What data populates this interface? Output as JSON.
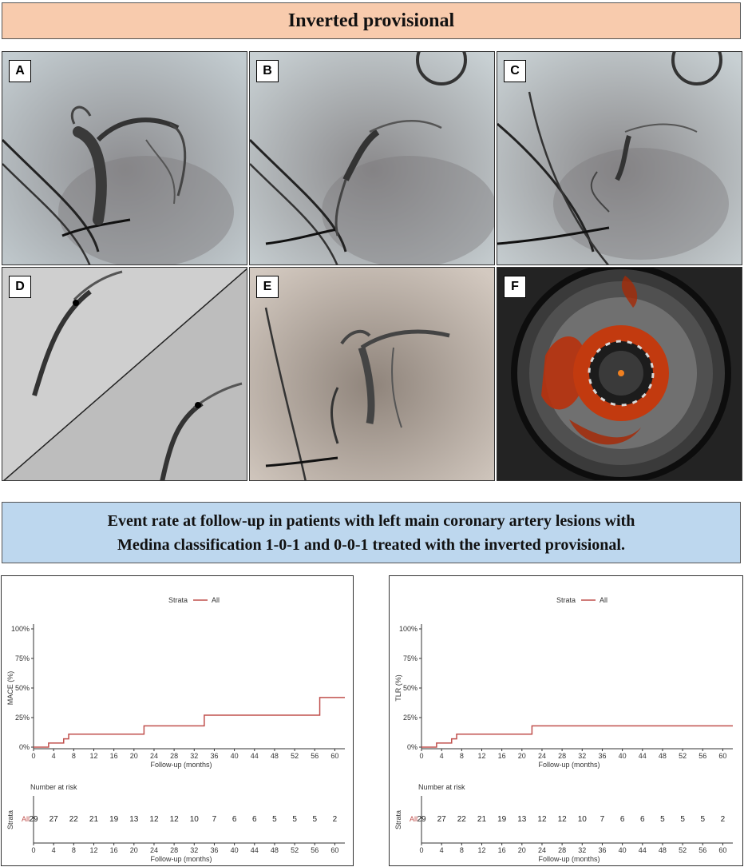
{
  "header": {
    "title": "Inverted provisional"
  },
  "images": [
    {
      "label": "A"
    },
    {
      "label": "B"
    },
    {
      "label": "C"
    },
    {
      "label": "D"
    },
    {
      "label": "E"
    },
    {
      "label": "F"
    }
  ],
  "subtitle": {
    "line1": "Event rate at follow-up in patients with left main coronary artery lesions with",
    "line2": "Medina classification 1-0-1 and 0-0-1 treated with the inverted provisional."
  },
  "colors": {
    "title_bg": "#f8cbad",
    "subtitle_bg": "#bdd7ee",
    "curve": "#c0504d"
  },
  "chart_data": [
    {
      "type": "line",
      "step": true,
      "legend": {
        "title": "Strata",
        "entries": [
          "All"
        ],
        "position": "top"
      },
      "xlabel": "Follow-up (months)",
      "ylabel": "MACE (%)",
      "xticks": [
        0,
        4,
        8,
        12,
        16,
        20,
        24,
        28,
        32,
        36,
        40,
        44,
        48,
        52,
        56,
        60
      ],
      "yticks": [
        "0%",
        "25%",
        "50%",
        "75%",
        "100%"
      ],
      "xlim": [
        0,
        62
      ],
      "ylim": [
        0,
        100
      ],
      "grid": false,
      "series": [
        {
          "name": "All",
          "x": [
            0,
            3,
            6,
            7,
            22,
            34,
            57,
            62
          ],
          "y": [
            0,
            3.5,
            7,
            11,
            18,
            27,
            42,
            42
          ]
        }
      ],
      "risk_table": {
        "title": "Number at risk",
        "row_title": "Strata",
        "row_label": "All",
        "times": [
          0,
          4,
          8,
          12,
          16,
          20,
          24,
          28,
          32,
          36,
          40,
          44,
          48,
          52,
          56,
          60
        ],
        "values": [
          29,
          27,
          22,
          21,
          19,
          13,
          12,
          12,
          10,
          7,
          6,
          6,
          5,
          5,
          5,
          2
        ],
        "xlabel": "Follow-up (months)"
      }
    },
    {
      "type": "line",
      "step": true,
      "legend": {
        "title": "Strata",
        "entries": [
          "All"
        ],
        "position": "top"
      },
      "xlabel": "Follow-up (months)",
      "ylabel": "TLR (%)",
      "xticks": [
        0,
        4,
        8,
        12,
        16,
        20,
        24,
        28,
        32,
        36,
        40,
        44,
        48,
        52,
        56,
        60
      ],
      "yticks": [
        "0%",
        "25%",
        "50%",
        "75%",
        "100%"
      ],
      "xlim": [
        0,
        62
      ],
      "ylim": [
        0,
        100
      ],
      "grid": false,
      "series": [
        {
          "name": "All",
          "x": [
            0,
            3,
            6,
            7,
            22,
            62
          ],
          "y": [
            0,
            3.5,
            7,
            11,
            18,
            18
          ]
        }
      ],
      "risk_table": {
        "title": "Number at risk",
        "row_title": "Strata",
        "row_label": "All",
        "times": [
          0,
          4,
          8,
          12,
          16,
          20,
          24,
          28,
          32,
          36,
          40,
          44,
          48,
          52,
          56,
          60
        ],
        "values": [
          29,
          27,
          22,
          21,
          19,
          13,
          12,
          12,
          10,
          7,
          6,
          6,
          5,
          5,
          5,
          2
        ],
        "xlabel": "Follow-up (months)"
      }
    }
  ]
}
